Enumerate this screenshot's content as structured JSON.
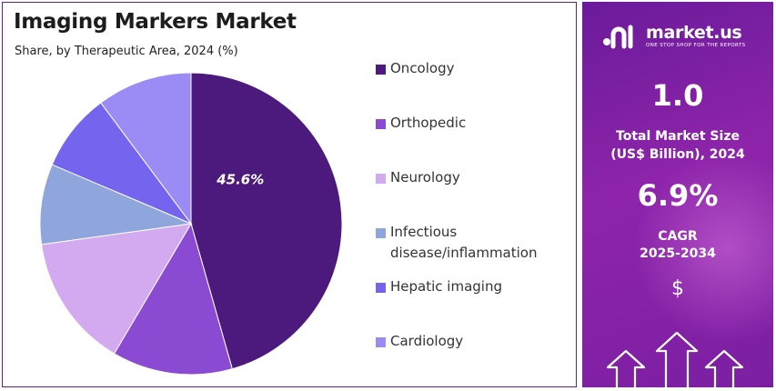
{
  "header": {
    "title": "Imaging Markers Market",
    "subtitle": "Share, by Therapeutic Area, 2024 (%)"
  },
  "chart_data": {
    "type": "pie",
    "title": "Imaging Markers Market",
    "subtitle": "Share, by Therapeutic Area, 2024 (%)",
    "categories": [
      "Oncology",
      "Orthopedic",
      "Neurology",
      "Infectious disease/inflammation",
      "Hepatic imaging",
      "Cardiology"
    ],
    "values": [
      45.6,
      12.9,
      14.3,
      8.6,
      8.4,
      10.2
    ],
    "data_labels": [
      "45.6%",
      "",
      "",
      "",
      "",
      ""
    ],
    "colors": [
      "#4b1a7c",
      "#8a4bd2",
      "#d3a9ef",
      "#8ea6dc",
      "#7464ee",
      "#9a8cf4"
    ],
    "legend_position": "right"
  },
  "legend": {
    "items": [
      {
        "label": "Oncology",
        "color": "#4b1a7c"
      },
      {
        "label": "Orthopedic",
        "color": "#8a4bd2"
      },
      {
        "label": "Neurology",
        "color": "#d3a9ef"
      },
      {
        "label": "Infectious",
        "label2": "disease/inflammation",
        "color": "#8ea6dc"
      },
      {
        "label": "Hepatic imaging",
        "color": "#7464ee"
      },
      {
        "label": "Cardiology",
        "color": "#9a8cf4"
      }
    ]
  },
  "sidebar": {
    "brand_name": "market.us",
    "brand_tagline": "ONE STOP SHOP FOR THE REPORTS",
    "market_size_value": "1.0",
    "market_size_label_line1": "Total Market Size",
    "market_size_label_line2": "(US$ Billion), 2024",
    "cagr_value": "6.9%",
    "cagr_label_line1": "CAGR",
    "cagr_label_line2": "2025-2034",
    "dollar_symbol": "$",
    "icons": [
      "market-us-logo-icon",
      "dollar-icon",
      "growth-arrows-icon"
    ]
  }
}
